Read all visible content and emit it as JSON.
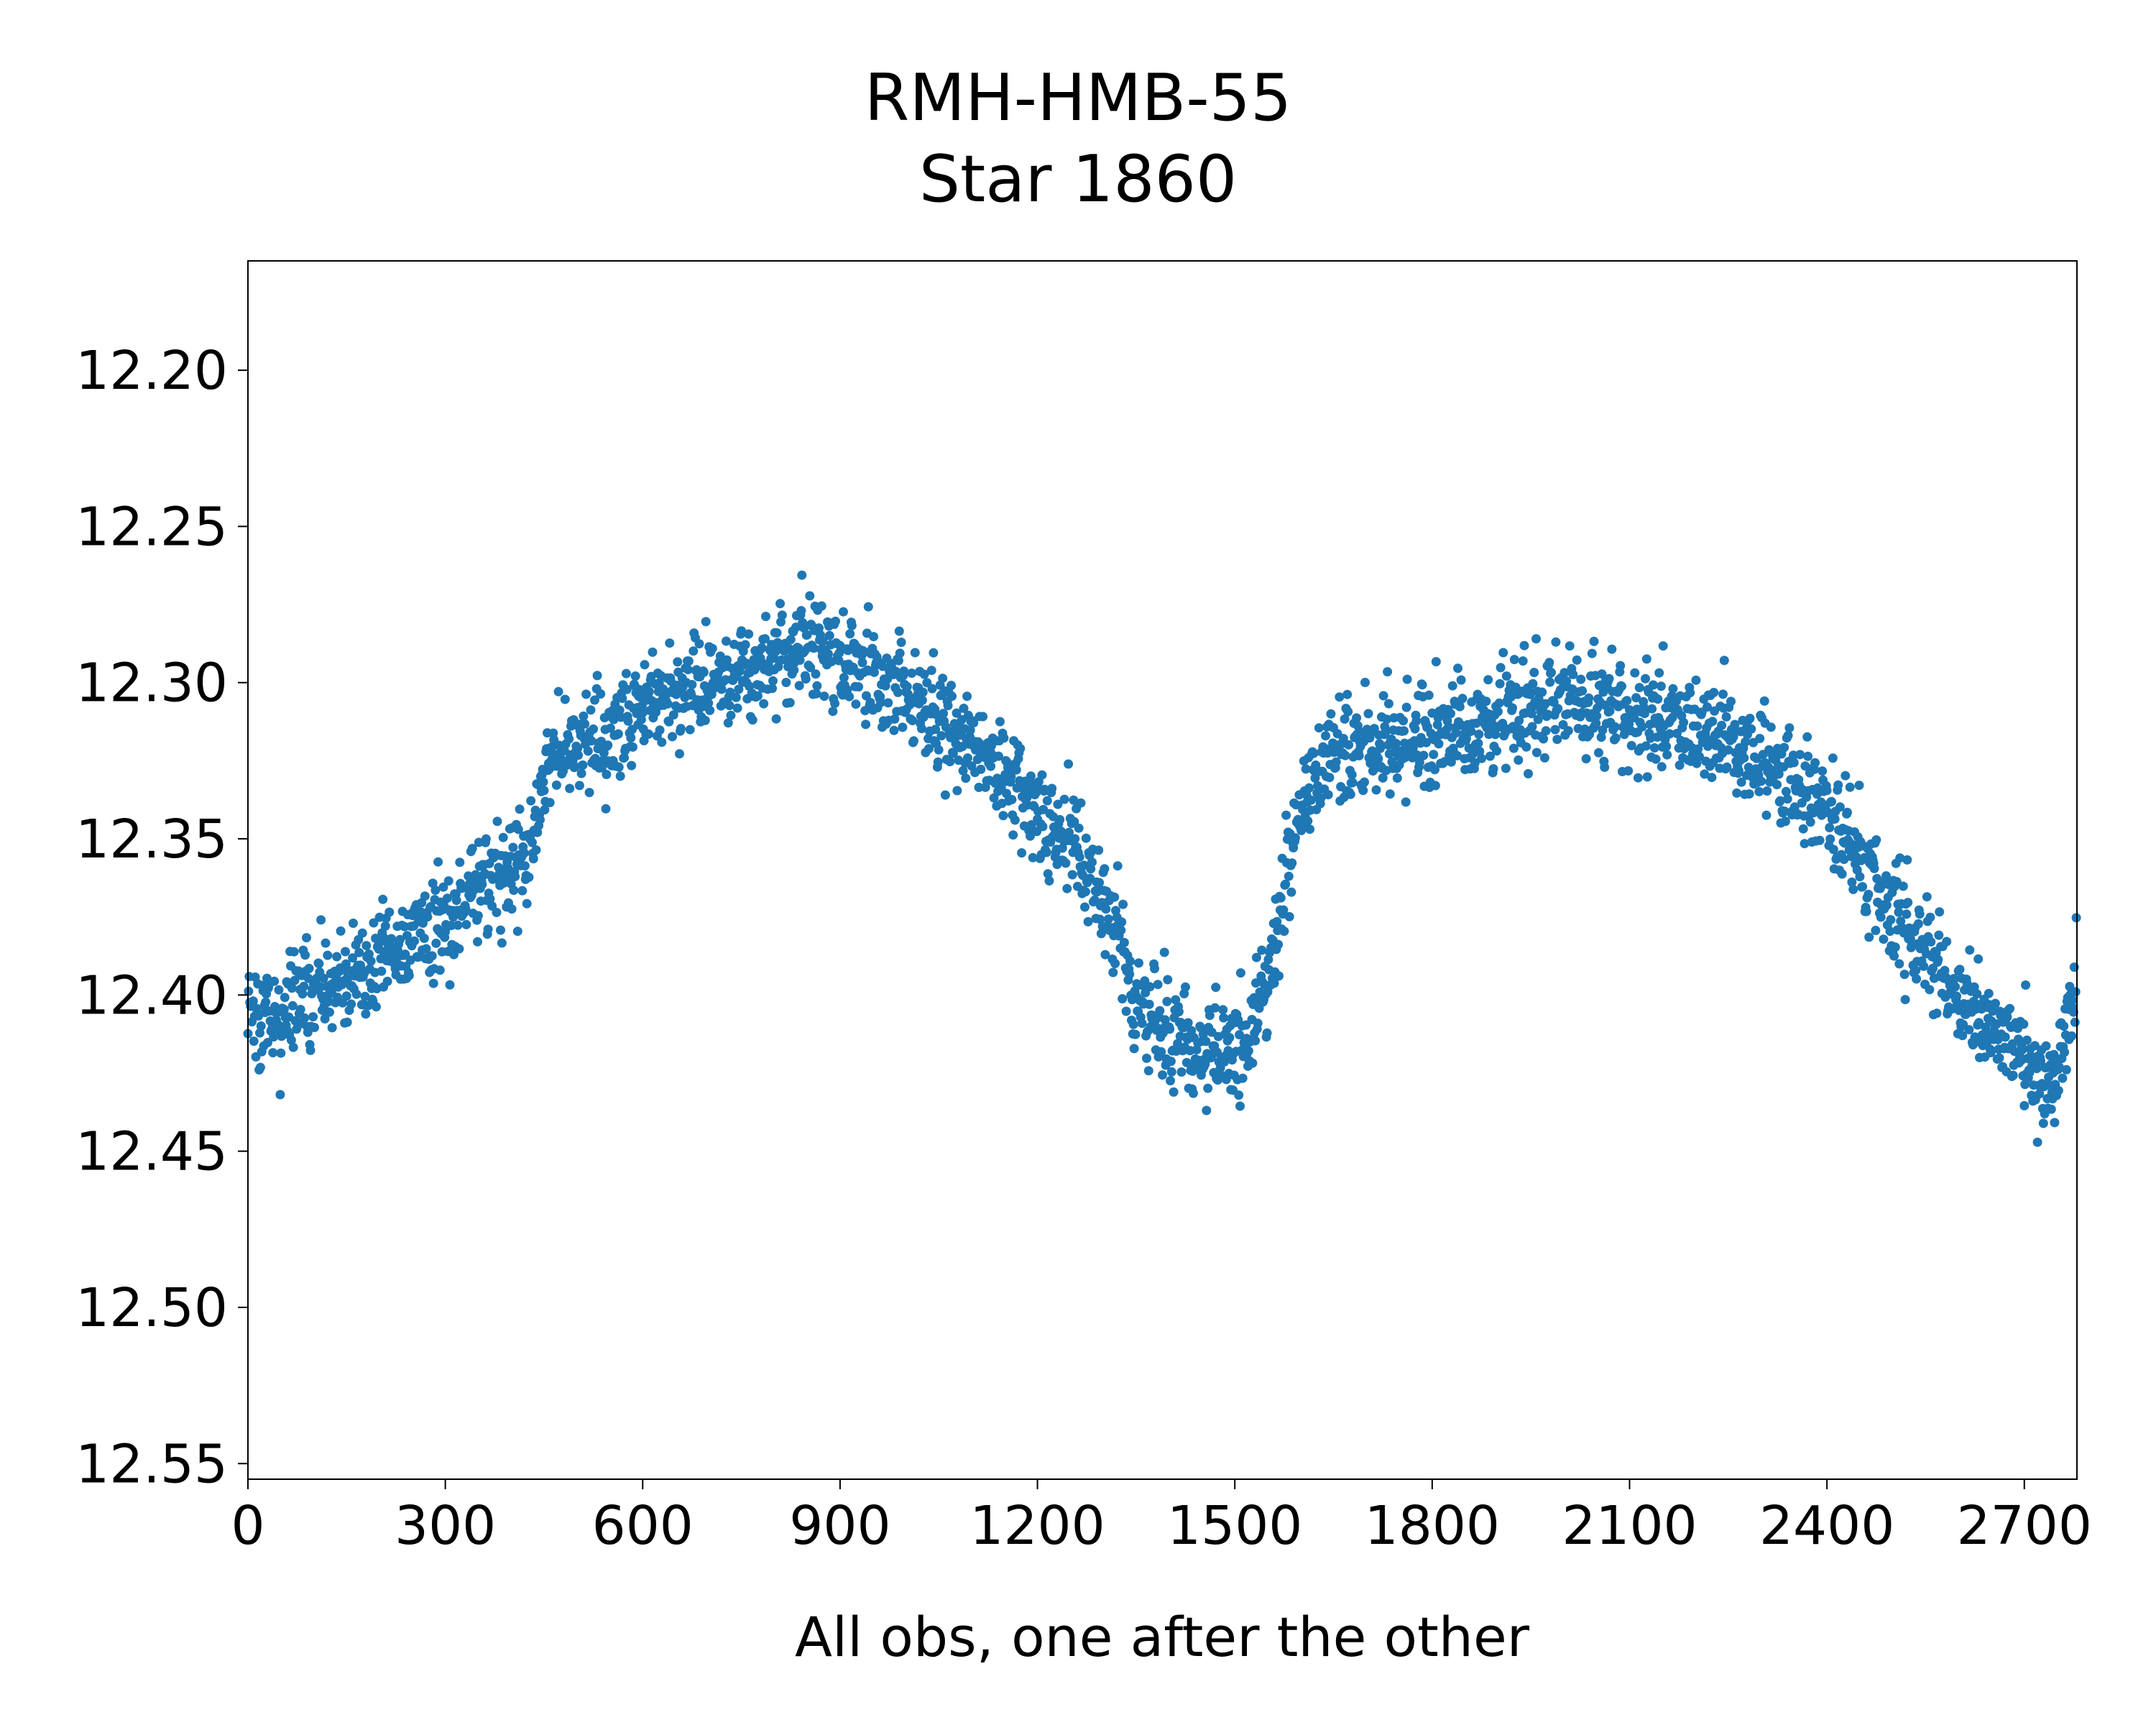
{
  "chart_data": {
    "type": "scatter",
    "title": "RMH-HMB-55",
    "subtitle": "Star 1860",
    "xlabel": "All obs, one after the other",
    "ylabel": "",
    "xlim": [
      0,
      2780
    ],
    "ylim": [
      12.555,
      12.165
    ],
    "y_inverted": true,
    "grid": false,
    "xticks": [
      0,
      300,
      600,
      900,
      1200,
      1500,
      1800,
      2100,
      2400,
      2700
    ],
    "xtick_labels": [
      "0",
      "300",
      "600",
      "900",
      "1200",
      "1500",
      "1800",
      "2100",
      "2400",
      "2700"
    ],
    "yticks": [
      12.2,
      12.25,
      12.3,
      12.35,
      12.4,
      12.45,
      12.5,
      12.55
    ],
    "ytick_labels": [
      "12.20",
      "12.25",
      "12.30",
      "12.35",
      "12.40",
      "12.45",
      "12.50",
      "12.55"
    ],
    "marker_color": "#1f77b4",
    "n_points": 2780,
    "series": [
      {
        "trend": {
          "x": [
            0,
            100,
            200,
            300,
            400,
            430,
            460,
            500,
            600,
            700,
            800,
            860,
            900,
            1000,
            1100,
            1200,
            1300,
            1350,
            1400,
            1450,
            1520,
            1560,
            1600,
            1640,
            1700,
            1800,
            1900,
            2000,
            2100,
            2200,
            2300,
            2400,
            2500,
            2600,
            2700,
            2740,
            2780
          ],
          "y": [
            12.41,
            12.4,
            12.388,
            12.375,
            12.36,
            12.355,
            12.322,
            12.32,
            12.31,
            12.3,
            12.292,
            12.29,
            12.292,
            12.305,
            12.318,
            12.34,
            12.368,
            12.4,
            12.415,
            12.42,
            12.415,
            12.385,
            12.34,
            12.325,
            12.322,
            12.318,
            12.312,
            12.305,
            12.31,
            12.315,
            12.325,
            12.34,
            12.375,
            12.4,
            12.42,
            12.43,
            12.395
          ]
        },
        "scatter_sd": 0.008
      }
    ]
  }
}
